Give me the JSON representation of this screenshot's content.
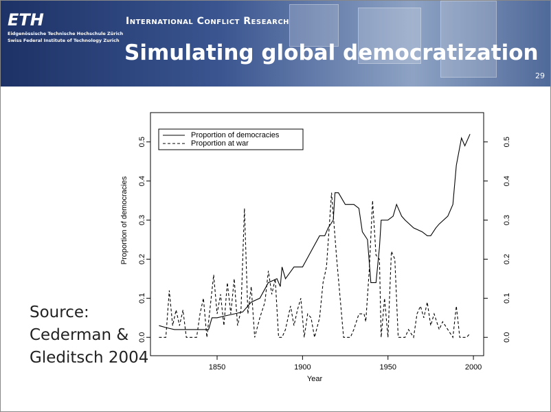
{
  "header": {
    "logo": "ETH",
    "institution_de": "Eidgenössische Technische Hochschule Zürich",
    "institution_en": "Swiss Federal Institute of Technology Zurich",
    "group": "International Conflict Research",
    "title": "Simulating global democratization",
    "slide_number": "29"
  },
  "source": [
    "Source:",
    "Cederman &",
    "Gleditsch 2004"
  ],
  "chart_data": {
    "type": "line",
    "x_label": "Year",
    "y_label": "Proportion of democracies",
    "xlim": [
      1811,
      2006
    ],
    "xticks": [
      1850,
      1900,
      1950,
      2000
    ],
    "ylim": [
      -0.047,
      0.575
    ],
    "yticks": [
      {
        "value": 0,
        "label": "0.0"
      },
      0.1,
      0.2,
      0.3,
      0.4,
      0.5
    ],
    "y2lim": [
      -0.047,
      0.575
    ],
    "y2ticks": [
      {
        "value": 0,
        "label": "0.0"
      },
      0.1,
      0.2,
      0.3,
      0.4,
      0.5
    ],
    "legend": "upper left",
    "series": [
      {
        "name": "Proportion of democracies",
        "color": "#000000",
        "line_style": "solid",
        "x": [
          1816,
          1820,
          1825,
          1830,
          1835,
          1840,
          1845,
          1847,
          1850,
          1855,
          1860,
          1865,
          1870,
          1875,
          1880,
          1885,
          1887,
          1888,
          1890,
          1895,
          1900,
          1905,
          1910,
          1913,
          1915,
          1918,
          1919,
          1921,
          1925,
          1930,
          1933,
          1935,
          1938,
          1940,
          1943,
          1945,
          1946,
          1950,
          1953,
          1955,
          1958,
          1960,
          1965,
          1970,
          1973,
          1975,
          1978,
          1980,
          1985,
          1988,
          1990,
          1993,
          1995,
          1998
        ],
        "values": [
          0.03,
          0.025,
          0.02,
          0.02,
          0.02,
          0.02,
          0.02,
          0.05,
          0.05,
          0.055,
          0.06,
          0.065,
          0.09,
          0.1,
          0.14,
          0.15,
          0.13,
          0.18,
          0.15,
          0.18,
          0.18,
          0.22,
          0.26,
          0.26,
          0.28,
          0.3,
          0.37,
          0.37,
          0.34,
          0.34,
          0.33,
          0.27,
          0.25,
          0.14,
          0.14,
          0.23,
          0.3,
          0.3,
          0.31,
          0.34,
          0.31,
          0.3,
          0.28,
          0.27,
          0.26,
          0.26,
          0.28,
          0.29,
          0.31,
          0.34,
          0.44,
          0.51,
          0.49,
          0.52
        ]
      },
      {
        "name": "Proportion at war",
        "color": "#000000",
        "line_style": "dashed",
        "x": [
          1816,
          1820,
          1822,
          1824,
          1826,
          1828,
          1830,
          1832,
          1835,
          1838,
          1840,
          1842,
          1844,
          1846,
          1848,
          1850,
          1852,
          1854,
          1856,
          1858,
          1860,
          1862,
          1864,
          1866,
          1868,
          1870,
          1872,
          1875,
          1878,
          1880,
          1882,
          1884,
          1886,
          1888,
          1890,
          1893,
          1895,
          1897,
          1899,
          1901,
          1903,
          1905,
          1907,
          1910,
          1912,
          1914,
          1917,
          1920,
          1922,
          1924,
          1928,
          1930,
          1933,
          1936,
          1937,
          1939,
          1941,
          1943,
          1945,
          1946,
          1948,
          1950,
          1952,
          1954,
          1956,
          1960,
          1962,
          1965,
          1967,
          1969,
          1971,
          1973,
          1975,
          1977,
          1980,
          1982,
          1985,
          1988,
          1990,
          1992,
          1996,
          1998
        ],
        "values": [
          0,
          0,
          0.12,
          0.03,
          0.07,
          0.03,
          0.07,
          0,
          0,
          0,
          0.06,
          0.1,
          0,
          0.08,
          0.16,
          0.06,
          0.11,
          0.03,
          0.14,
          0.06,
          0.15,
          0.03,
          0.07,
          0.33,
          0.06,
          0.13,
          0,
          0.05,
          0.09,
          0.17,
          0.11,
          0.15,
          0,
          0,
          0.02,
          0.08,
          0.03,
          0.07,
          0.1,
          0,
          0.06,
          0.05,
          0,
          0.05,
          0.14,
          0.18,
          0.37,
          0.2,
          0.1,
          0,
          0,
          0.02,
          0.06,
          0.06,
          0.04,
          0.17,
          0.35,
          0.21,
          0.2,
          0,
          0.1,
          0,
          0.22,
          0.2,
          0,
          0,
          0.02,
          0,
          0.06,
          0.08,
          0.05,
          0.09,
          0.03,
          0.06,
          0.02,
          0.04,
          0.02,
          0,
          0.08,
          0,
          0,
          0.01
        ]
      }
    ]
  }
}
